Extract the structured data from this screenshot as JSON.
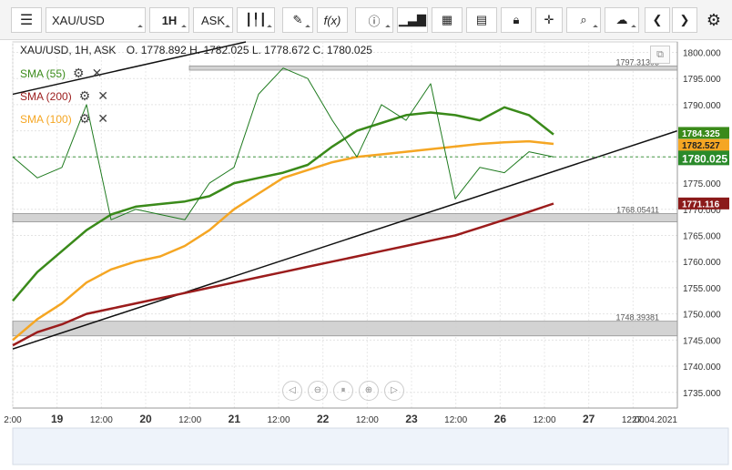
{
  "toolbar": {
    "symbol": "XAU/USD",
    "timeframe": "1H",
    "price_type": "ASK",
    "function_label": "f(x)"
  },
  "ohlc": {
    "header": "XAU/USD, 1H, ASK",
    "values": "O. 1778.892 H. 1782.025 L. 1778.672 C. 1780.025"
  },
  "indicators": [
    {
      "label": "SMA (55)",
      "color": "#3a8a1a"
    },
    {
      "label": "SMA (200)",
      "color": "#9b1c1c"
    },
    {
      "label": "SMA (100)",
      "color": "#f5a623"
    }
  ],
  "price_labels": {
    "sma55": "1784.325",
    "sma100": "1782.527",
    "current": "1780.025",
    "sma200": "1771.116"
  },
  "zone_labels": [
    "1797.31393",
    "1768.05411",
    "1748.39381"
  ],
  "chart_data": {
    "type": "line",
    "ylim": [
      1732,
      1802
    ],
    "yticks": [
      1735,
      1740,
      1745,
      1750,
      1755,
      1760,
      1765,
      1770,
      1775,
      1780,
      1785,
      1790,
      1795,
      1800
    ],
    "x_labels": [
      "2:00",
      "19",
      "12:00",
      "20",
      "12:00",
      "21",
      "12:00",
      "22",
      "12:00",
      "23",
      "12:00",
      "26",
      "12:00",
      "27",
      "12:00",
      "27.04.2021"
    ],
    "current_price": 1780.025,
    "zones": [
      {
        "label": "1797.31393",
        "low": 1796.6,
        "high": 1797.4
      },
      {
        "label": "1768.05411",
        "low": 1767.6,
        "high": 1769.2
      },
      {
        "label": "1748.39381",
        "low": 1745.8,
        "high": 1748.6
      }
    ],
    "series": [
      {
        "name": "SMA (55)",
        "color": "#3a8a1a",
        "values": [
          1752.5,
          1758,
          1762,
          1766,
          1769,
          1770.5,
          1771,
          1771.5,
          1772.5,
          1775,
          1776,
          1777,
          1778.5,
          1782,
          1785,
          1786.5,
          1788,
          1788.5,
          1788,
          1787,
          1789.5,
          1788,
          1784.3
        ]
      },
      {
        "name": "SMA (100)",
        "color": "#f5a623",
        "values": [
          1745,
          1749,
          1752,
          1756,
          1758.5,
          1760,
          1761,
          1763,
          1766,
          1770,
          1773,
          1776,
          1777.5,
          1779,
          1780,
          1780.5,
          1781,
          1781.5,
          1782,
          1782.5,
          1782.8,
          1783,
          1782.5
        ]
      },
      {
        "name": "SMA (200)",
        "color": "#9b1c1c",
        "values": [
          1744,
          1746.5,
          1748,
          1750,
          1751,
          1752,
          1753,
          1754,
          1755,
          1756,
          1757,
          1758,
          1759,
          1760,
          1761,
          1762,
          1763,
          1764,
          1765,
          1766.5,
          1768,
          1769.5,
          1771.1
        ]
      },
      {
        "name": "Price",
        "color": "#1e7a1e",
        "values": [
          1780,
          1776,
          1778,
          1790,
          1768,
          1770,
          1769,
          1768,
          1775,
          1778,
          1792,
          1797,
          1795,
          1787,
          1780,
          1790,
          1787,
          1794,
          1772,
          1778,
          1777,
          1781,
          1780
        ]
      }
    ]
  }
}
